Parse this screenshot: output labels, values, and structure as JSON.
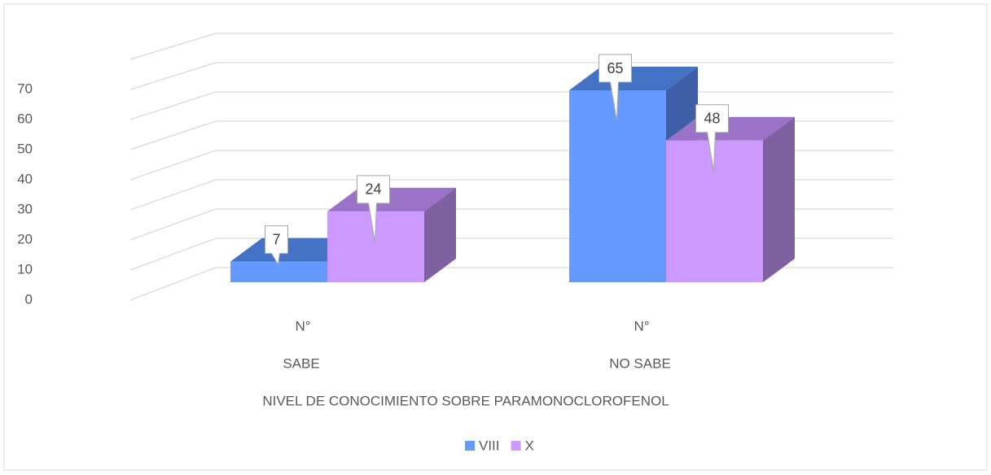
{
  "chart_data": {
    "type": "bar3d",
    "x_label": "NIVEL DE CONOCIMIENTO SOBRE PARAMONOCLOROFENOL",
    "categories": [
      [
        "N°",
        "SABE"
      ],
      [
        "N°",
        "NO SABE"
      ]
    ],
    "series": [
      {
        "name": "VIII",
        "color": "#6699ff",
        "side": "#3e5fa8",
        "top": "#4472c4",
        "values": [
          7,
          65
        ]
      },
      {
        "name": "X",
        "color": "#cc99ff",
        "side": "#7f60a0",
        "top": "#9b72c8",
        "values": [
          24,
          48
        ]
      }
    ],
    "ylim": [
      0,
      80
    ],
    "yticks": [
      0,
      10,
      20,
      30,
      40,
      50,
      60,
      70
    ],
    "grid": true,
    "legend": "bottom"
  }
}
